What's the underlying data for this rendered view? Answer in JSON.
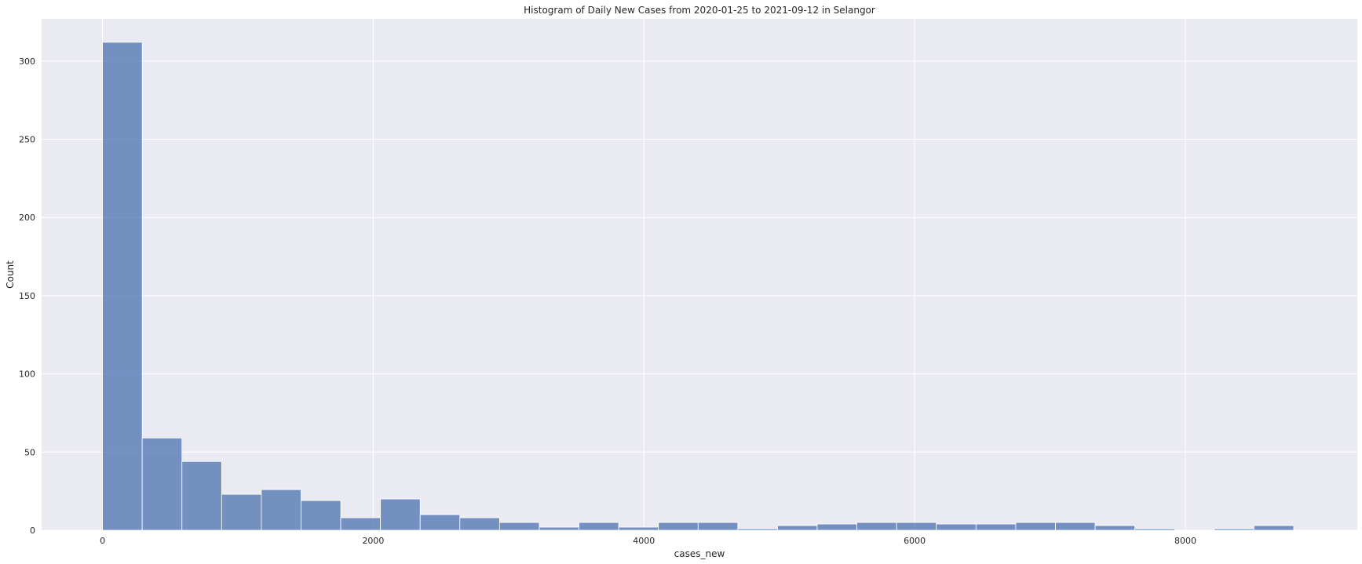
{
  "chart_data": {
    "type": "bar",
    "title": "Histogram of Daily New Cases from 2020-01-25 to 2021-09-12 in Selangor",
    "xlabel": "cases_new",
    "ylabel": "Count",
    "xlim": [
      -450,
      9270
    ],
    "ylim": [
      0,
      327
    ],
    "xticks": [
      0,
      2000,
      4000,
      6000,
      8000
    ],
    "yticks": [
      0,
      50,
      100,
      150,
      200,
      250,
      300
    ],
    "bin_edges": [
      0,
      293.3,
      586.7,
      880,
      1173.3,
      1466.7,
      1760,
      2053.3,
      2346.7,
      2640,
      2933.3,
      3226.7,
      3520,
      3813.3,
      4106.7,
      4400,
      4693.3,
      4986.7,
      5280,
      5573.3,
      5866.7,
      6160,
      6453.3,
      6746.7,
      7040,
      7333.3,
      7626.7,
      7920,
      8213.3,
      8506.7,
      8800
    ],
    "counts": [
      312,
      59,
      44,
      23,
      26,
      19,
      8,
      20,
      10,
      8,
      5,
      2,
      5,
      2,
      5,
      5,
      1,
      3,
      4,
      5,
      5,
      4,
      4,
      5,
      5,
      3,
      1,
      0,
      1,
      3
    ],
    "bar_color": "#4c72b0",
    "background_color": "#eaeaf2",
    "grid": true
  }
}
